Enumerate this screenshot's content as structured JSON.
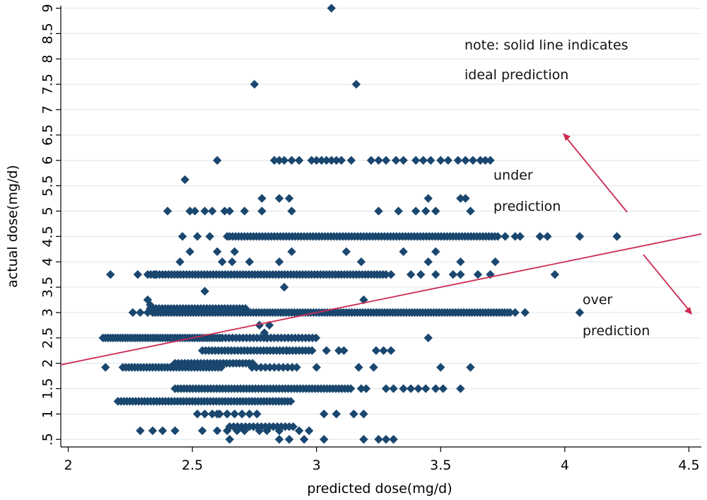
{
  "chart_data": {
    "type": "scatter",
    "xlabel": "predicted dose(mg/d)",
    "ylabel": "actual dose(mg/d)",
    "xlim": [
      1.97,
      4.55
    ],
    "ylim": [
      0.35,
      9.05
    ],
    "xticks": [
      2,
      2.5,
      3,
      3.5,
      4,
      4.5
    ],
    "xtick_labels": [
      "2",
      "2.5",
      "3",
      "3.5",
      "4",
      "4.5"
    ],
    "yticks": [
      0.5,
      1,
      1.5,
      2,
      2.5,
      3,
      3.5,
      4,
      4.5,
      5,
      5.5,
      6,
      6.5,
      7,
      7.5,
      8,
      8.5,
      9
    ],
    "ytick_labels": [
      ".5",
      "1",
      "1.5",
      "2",
      "2.5",
      "3",
      "3.5",
      "4",
      "4.5",
      "5",
      "5.5",
      "6",
      "6.5",
      "7",
      "7.5",
      "8",
      "8.5",
      "9"
    ],
    "grid": "horizontal",
    "colors": {
      "points": "#1a476f",
      "ideal_line": "#cc2b53",
      "grid": "#e3e9ee"
    },
    "ideal_line": {
      "x": [
        1.97,
        4.55
      ],
      "y": [
        1.97,
        4.55
      ]
    },
    "annotations": {
      "note_line1": "note:  solid line indicates",
      "note_line2": "ideal prediction",
      "under_line1": "under",
      "under_line2": "prediction",
      "over_line1": "over",
      "over_line2": "prediction"
    },
    "points": [
      [
        3.06,
        9.0
      ],
      [
        2.75,
        7.5
      ],
      [
        3.16,
        7.5
      ],
      [
        2.47,
        5.62
      ],
      [
        2.6,
        6.0
      ],
      [
        2.83,
        6.0
      ],
      [
        2.85,
        6.0
      ],
      [
        2.87,
        6.0
      ],
      [
        2.9,
        6.0
      ],
      [
        2.93,
        6.0
      ],
      [
        2.98,
        6.0
      ],
      [
        3.0,
        6.0
      ],
      [
        3.02,
        6.0
      ],
      [
        3.04,
        6.0
      ],
      [
        3.06,
        6.0
      ],
      [
        3.08,
        6.0
      ],
      [
        3.1,
        6.0
      ],
      [
        3.14,
        6.0
      ],
      [
        3.22,
        6.0
      ],
      [
        3.25,
        6.0
      ],
      [
        3.28,
        6.0
      ],
      [
        3.32,
        6.0
      ],
      [
        3.35,
        6.0
      ],
      [
        3.4,
        6.0
      ],
      [
        3.43,
        6.0
      ],
      [
        3.46,
        6.0
      ],
      [
        3.5,
        6.0
      ],
      [
        3.53,
        6.0
      ],
      [
        3.57,
        6.0
      ],
      [
        3.6,
        6.0
      ],
      [
        3.63,
        6.0
      ],
      [
        3.66,
        6.0
      ],
      [
        3.68,
        6.0
      ],
      [
        3.7,
        6.0
      ],
      [
        2.78,
        5.25
      ],
      [
        2.85,
        5.25
      ],
      [
        2.89,
        5.25
      ],
      [
        3.45,
        5.25
      ],
      [
        3.58,
        5.25
      ],
      [
        3.6,
        5.25
      ],
      [
        2.4,
        5.0
      ],
      [
        2.49,
        5.0
      ],
      [
        2.51,
        5.0
      ],
      [
        2.55,
        5.0
      ],
      [
        2.58,
        5.0
      ],
      [
        2.63,
        5.0
      ],
      [
        2.65,
        5.0
      ],
      [
        2.71,
        5.0
      ],
      [
        2.78,
        5.0
      ],
      [
        2.9,
        5.0
      ],
      [
        3.25,
        5.0
      ],
      [
        3.33,
        5.0
      ],
      [
        3.4,
        5.0
      ],
      [
        3.44,
        5.0
      ],
      [
        3.48,
        5.0
      ],
      [
        3.62,
        5.0
      ],
      [
        2.46,
        4.5
      ],
      [
        2.52,
        4.5
      ],
      [
        2.57,
        4.5
      ],
      [
        2.64,
        4.5
      ],
      [
        3.73,
        4.5
      ],
      [
        3.76,
        4.5
      ],
      [
        3.8,
        4.5
      ],
      [
        3.82,
        4.5
      ],
      [
        3.9,
        4.5
      ],
      [
        3.93,
        4.5
      ],
      [
        4.06,
        4.5
      ],
      [
        4.21,
        4.5
      ],
      [
        2.49,
        4.2
      ],
      [
        2.6,
        4.2
      ],
      [
        2.67,
        4.2
      ],
      [
        2.9,
        4.2
      ],
      [
        3.12,
        4.2
      ],
      [
        3.35,
        4.2
      ],
      [
        3.48,
        4.2
      ],
      [
        2.45,
        4.0
      ],
      [
        2.62,
        4.0
      ],
      [
        2.66,
        4.0
      ],
      [
        2.73,
        4.0
      ],
      [
        2.85,
        4.0
      ],
      [
        3.18,
        4.0
      ],
      [
        3.45,
        4.0
      ],
      [
        3.58,
        4.0
      ],
      [
        3.72,
        4.0
      ],
      [
        2.17,
        3.75
      ],
      [
        2.28,
        3.75
      ],
      [
        2.35,
        3.75
      ],
      [
        3.3,
        3.75
      ],
      [
        3.38,
        3.75
      ],
      [
        3.42,
        3.75
      ],
      [
        3.48,
        3.75
      ],
      [
        3.55,
        3.75
      ],
      [
        3.58,
        3.75
      ],
      [
        3.65,
        3.75
      ],
      [
        3.7,
        3.75
      ],
      [
        3.96,
        3.75
      ],
      [
        2.87,
        3.5
      ],
      [
        2.55,
        3.42
      ],
      [
        3.19,
        3.25
      ],
      [
        2.32,
        3.25
      ],
      [
        2.33,
        3.15
      ],
      [
        2.26,
        3.0
      ],
      [
        2.29,
        3.0
      ],
      [
        2.32,
        3.0
      ],
      [
        2.34,
        3.0
      ],
      [
        3.8,
        3.0
      ],
      [
        3.84,
        3.0
      ],
      [
        4.06,
        3.0
      ],
      [
        2.77,
        2.75
      ],
      [
        2.81,
        2.75
      ],
      [
        2.79,
        2.6
      ],
      [
        2.8,
        2.5
      ],
      [
        3.45,
        2.5
      ],
      [
        2.88,
        2.25
      ],
      [
        3.04,
        2.25
      ],
      [
        3.09,
        2.25
      ],
      [
        3.11,
        2.25
      ],
      [
        3.24,
        2.25
      ],
      [
        3.27,
        2.25
      ],
      [
        3.3,
        2.25
      ],
      [
        2.15,
        1.92
      ],
      [
        3.17,
        1.92
      ],
      [
        3.23,
        1.92
      ],
      [
        3.5,
        1.92
      ],
      [
        3.62,
        1.92
      ],
      [
        3.0,
        1.92
      ],
      [
        3.18,
        1.5
      ],
      [
        3.2,
        1.5
      ],
      [
        3.28,
        1.5
      ],
      [
        3.31,
        1.5
      ],
      [
        3.35,
        1.5
      ],
      [
        3.38,
        1.5
      ],
      [
        3.41,
        1.5
      ],
      [
        3.44,
        1.5
      ],
      [
        3.48,
        1.5
      ],
      [
        3.51,
        1.5
      ],
      [
        3.58,
        1.5
      ],
      [
        3.15,
        1.0
      ],
      [
        3.19,
        1.0
      ],
      [
        3.03,
        1.0
      ],
      [
        3.08,
        1.0
      ],
      [
        2.6,
        1.0
      ],
      [
        2.64,
        1.0
      ],
      [
        2.29,
        0.67
      ],
      [
        2.34,
        0.67
      ],
      [
        2.38,
        0.67
      ],
      [
        2.43,
        0.67
      ],
      [
        2.54,
        0.67
      ],
      [
        2.6,
        0.67
      ],
      [
        2.64,
        0.67
      ],
      [
        2.68,
        0.67
      ],
      [
        2.71,
        0.67
      ],
      [
        2.77,
        0.67
      ],
      [
        2.8,
        0.67
      ],
      [
        2.85,
        0.67
      ],
      [
        2.93,
        0.67
      ],
      [
        2.97,
        0.67
      ],
      [
        3.03,
        0.5
      ],
      [
        3.19,
        0.5
      ],
      [
        3.25,
        0.5
      ],
      [
        3.28,
        0.5
      ],
      [
        3.31,
        0.5
      ],
      [
        2.85,
        0.5
      ],
      [
        2.89,
        0.5
      ],
      [
        2.95,
        0.5
      ],
      [
        2.65,
        0.5
      ]
    ],
    "dense_runs": [
      {
        "y": 4.5,
        "x": [
          2.65,
          3.72
        ],
        "step": 0.012
      },
      {
        "y": 3.75,
        "x": [
          2.32,
          3.28
        ],
        "step": 0.012
      },
      {
        "y": 3.08,
        "x": [
          2.33,
          2.72
        ],
        "step": 0.012
      },
      {
        "y": 3.0,
        "x": [
          2.35,
          3.79
        ],
        "step": 0.011
      },
      {
        "y": 2.5,
        "x": [
          2.14,
          2.62
        ],
        "step": 0.01
      },
      {
        "y": 2.5,
        "x": [
          2.62,
          3.0
        ],
        "step": 0.014
      },
      {
        "y": 2.25,
        "x": [
          2.54,
          2.99
        ],
        "step": 0.013
      },
      {
        "y": 2.0,
        "x": [
          2.43,
          2.75
        ],
        "step": 0.013
      },
      {
        "y": 1.92,
        "x": [
          2.22,
          2.62
        ],
        "step": 0.012
      },
      {
        "y": 1.92,
        "x": [
          2.74,
          2.93
        ],
        "step": 0.018
      },
      {
        "y": 1.5,
        "x": [
          2.43,
          3.14
        ],
        "step": 0.012
      },
      {
        "y": 1.25,
        "x": [
          2.2,
          2.9
        ],
        "step": 0.012
      },
      {
        "y": 1.0,
        "x": [
          2.52,
          2.78
        ],
        "step": 0.03
      },
      {
        "y": 0.75,
        "x": [
          2.65,
          2.91
        ],
        "step": 0.016
      }
    ]
  }
}
